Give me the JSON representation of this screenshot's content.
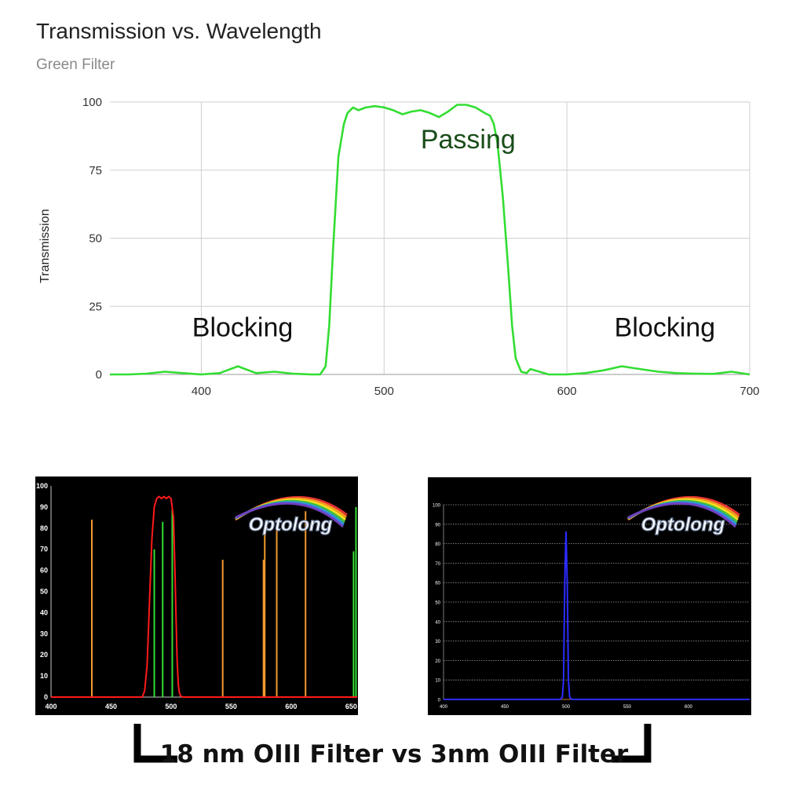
{
  "chart_data": [
    {
      "type": "line",
      "title": "Transmission vs. Wavelength",
      "subtitle": "Green Filter",
      "xlabel": "",
      "ylabel": "Transmission",
      "xlim": [
        350,
        700
      ],
      "ylim": [
        0,
        100
      ],
      "xticks": [
        400,
        500,
        600,
        700
      ],
      "yticks": [
        0,
        25,
        50,
        75,
        100
      ],
      "grid": true,
      "annotations": [
        {
          "text": "Blocking",
          "x": 395,
          "y": 14
        },
        {
          "text": "Passing",
          "x": 520,
          "y": 83
        },
        {
          "text": "Blocking",
          "x": 626,
          "y": 14
        }
      ],
      "series": [
        {
          "color": "#33dd33",
          "x": [
            350,
            360,
            370,
            380,
            390,
            400,
            410,
            420,
            430,
            440,
            450,
            460,
            465,
            468,
            470,
            472,
            475,
            478,
            480,
            483,
            486,
            490,
            495,
            500,
            505,
            510,
            515,
            520,
            525,
            530,
            535,
            540,
            545,
            550,
            555,
            558,
            560,
            562,
            565,
            568,
            570,
            572,
            575,
            578,
            580,
            585,
            590,
            600,
            610,
            620,
            630,
            640,
            650,
            660,
            670,
            680,
            690,
            700
          ],
          "y": [
            0,
            0,
            0.3,
            1,
            0.5,
            0,
            0.5,
            3,
            0.5,
            1,
            0.3,
            0,
            0,
            3,
            18,
            45,
            80,
            92,
            96,
            98,
            97,
            98,
            98.5,
            98,
            97,
            95.5,
            96.5,
            97,
            96,
            94.5,
            96.5,
            99,
            99,
            98,
            96,
            95,
            92,
            85,
            65,
            38,
            18,
            6,
            1,
            0.5,
            2,
            1,
            0,
            0,
            0.5,
            1.5,
            3,
            2,
            1,
            0.5,
            0.3,
            0.2,
            1,
            0
          ]
        }
      ]
    },
    {
      "type": "line",
      "title": "",
      "background": "#000000",
      "logo_text": "Optolong",
      "xlim": [
        400,
        655
      ],
      "ylim": [
        0,
        100
      ],
      "xticks": [
        400,
        450,
        500,
        550,
        600,
        650
      ],
      "yticks": [
        0,
        10,
        20,
        30,
        40,
        50,
        60,
        70,
        80,
        90,
        100
      ],
      "grid": false,
      "series": [
        {
          "color": "#ff1a1a",
          "x": [
            400,
            470,
            476,
            478,
            480,
            482,
            484,
            486,
            488,
            490,
            492,
            494,
            496,
            498,
            500,
            502,
            503,
            504,
            505,
            506,
            507,
            508,
            510,
            512,
            520,
            655
          ],
          "y": [
            0,
            0,
            0,
            3,
            15,
            45,
            75,
            90,
            94,
            95,
            94,
            95,
            94,
            95,
            94,
            85,
            65,
            40,
            18,
            6,
            2,
            0.5,
            0,
            0,
            0,
            0
          ]
        }
      ],
      "lines": [
        {
          "color": "#f29a2e",
          "x": 434,
          "y": 84
        },
        {
          "color": "#33dd33",
          "x": 486,
          "y": 70
        },
        {
          "color": "#33dd33",
          "x": 493,
          "y": 83
        },
        {
          "color": "#33dd33",
          "x": 501,
          "y": 89
        },
        {
          "color": "#f29a2e",
          "x": 543,
          "y": 65
        },
        {
          "color": "#f29a2e",
          "x": 577,
          "y": 65
        },
        {
          "color": "#f29a2e",
          "x": 578,
          "y": 80
        },
        {
          "color": "#f29a2e",
          "x": 588,
          "y": 82
        },
        {
          "color": "#f29a2e",
          "x": 612,
          "y": 88
        },
        {
          "color": "#33dd33",
          "x": 652,
          "y": 69
        },
        {
          "color": "#33dd33",
          "x": 654,
          "y": 90
        }
      ]
    },
    {
      "type": "line",
      "title": "",
      "background": "#000000",
      "logo_text": "Optolong",
      "xlim": [
        400,
        650
      ],
      "ylim": [
        0,
        100
      ],
      "xticks": [
        400,
        450,
        500,
        550,
        600
      ],
      "yticks": [
        0,
        10,
        20,
        30,
        40,
        50,
        60,
        70,
        80,
        90,
        100
      ],
      "grid": true,
      "series": [
        {
          "color": "#2b2bff",
          "x": [
            400,
            495,
            497,
            498,
            499,
            500,
            501,
            502,
            503,
            505,
            650
          ],
          "y": [
            0,
            0,
            1,
            10,
            60,
            86,
            60,
            10,
            1,
            0,
            0
          ]
        }
      ]
    }
  ],
  "caption": "18 nm OIII Filter vs 3nm OIII Filter"
}
